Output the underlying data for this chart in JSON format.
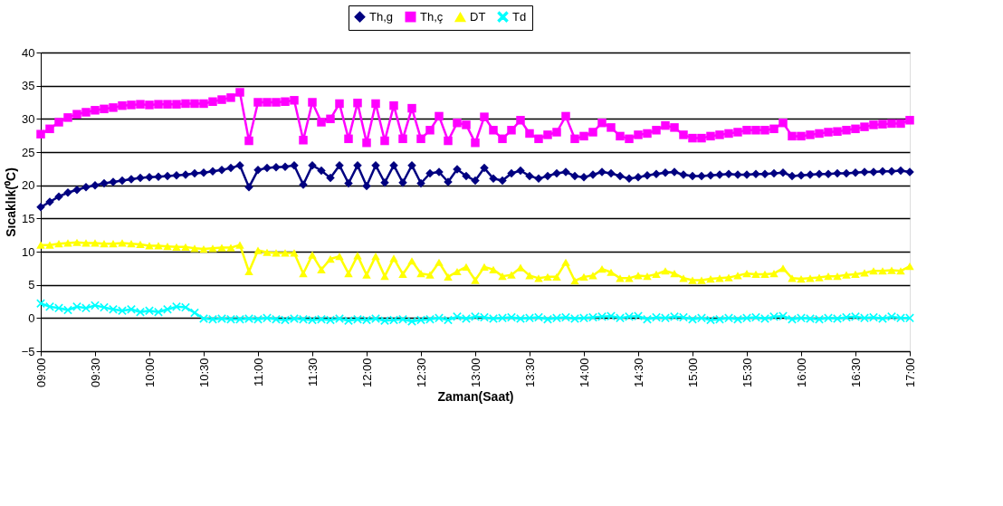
{
  "chart_data": {
    "type": "line",
    "xlabel": "Zaman(Saat)",
    "ylabel": "Sıcaklık(⁰C)",
    "ylim": [
      -5,
      40
    ],
    "yticks": [
      -5,
      0,
      5,
      10,
      15,
      20,
      25,
      30,
      35,
      40
    ],
    "grid": "y",
    "legend": "top",
    "categories": [
      "09:00",
      null,
      null,
      null,
      null,
      null,
      "09:30",
      null,
      null,
      null,
      null,
      null,
      "10:00",
      null,
      null,
      null,
      null,
      null,
      "10:30",
      null,
      null,
      null,
      null,
      null,
      "11:00",
      null,
      null,
      null,
      null,
      null,
      "11:30",
      null,
      null,
      null,
      null,
      null,
      "12:00",
      null,
      null,
      null,
      null,
      null,
      "12:30",
      null,
      null,
      null,
      null,
      null,
      "13:00",
      null,
      null,
      null,
      null,
      null,
      "13:30",
      null,
      null,
      null,
      null,
      null,
      "14:00",
      null,
      null,
      null,
      null,
      null,
      "14:30",
      null,
      null,
      null,
      null,
      null,
      "15:00",
      null,
      null,
      null,
      null,
      null,
      "15:30",
      null,
      null,
      null,
      null,
      null,
      "16:00",
      null,
      null,
      null,
      null,
      null,
      "16:30",
      null,
      null,
      null,
      null,
      null,
      "17:00"
    ],
    "series": [
      {
        "name": "Th,g",
        "color": "#000080",
        "marker": "diamond",
        "line_style": "solid",
        "values": [
          16.7,
          17.5,
          18.3,
          18.9,
          19.3,
          19.7,
          20.0,
          20.3,
          20.5,
          20.7,
          20.9,
          21.1,
          21.2,
          21.3,
          21.4,
          21.5,
          21.6,
          21.8,
          21.9,
          22.1,
          22.3,
          22.6,
          23.0,
          19.7,
          22.3,
          22.6,
          22.7,
          22.8,
          23.0,
          20.1,
          23.0,
          22.2,
          21.1,
          23.0,
          20.3,
          23.0,
          19.9,
          23.0,
          20.4,
          23.0,
          20.4,
          23.0,
          20.3,
          21.8,
          22.0,
          20.5,
          22.4,
          21.4,
          20.7,
          22.6,
          21.0,
          20.7,
          21.8,
          22.2,
          21.4,
          21.0,
          21.4,
          21.8,
          22.0,
          21.4,
          21.2,
          21.6,
          22.0,
          21.8,
          21.4,
          21.0,
          21.2,
          21.5,
          21.7,
          21.9,
          22.0,
          21.6,
          21.4,
          21.4,
          21.5,
          21.6,
          21.7,
          21.6,
          21.6,
          21.7,
          21.7,
          21.8,
          21.9,
          21.4,
          21.5,
          21.6,
          21.7,
          21.7,
          21.8,
          21.8,
          21.9,
          22.0,
          22.0,
          22.1,
          22.1,
          22.2,
          22.0
        ]
      },
      {
        "name": "Th,ç",
        "color": "#ff00ff",
        "marker": "square",
        "line_style": "solid",
        "values": [
          27.7,
          28.5,
          29.5,
          30.2,
          30.7,
          31.0,
          31.3,
          31.5,
          31.7,
          32.0,
          32.1,
          32.2,
          32.1,
          32.2,
          32.2,
          32.2,
          32.3,
          32.3,
          32.3,
          32.6,
          32.9,
          33.2,
          34.0,
          26.7,
          32.5,
          32.5,
          32.5,
          32.6,
          32.8,
          26.8,
          32.5,
          29.5,
          30.0,
          32.3,
          27.0,
          32.4,
          26.4,
          32.3,
          26.7,
          32.0,
          27.0,
          31.6,
          27.0,
          28.3,
          30.4,
          26.7,
          29.4,
          29.1,
          26.4,
          30.3,
          28.3,
          27.0,
          28.3,
          29.8,
          27.8,
          27.0,
          27.6,
          28.0,
          30.4,
          27.0,
          27.4,
          28.0,
          29.4,
          28.7,
          27.4,
          27.0,
          27.6,
          27.8,
          28.3,
          29.0,
          28.7,
          27.6,
          27.1,
          27.1,
          27.4,
          27.6,
          27.8,
          28.0,
          28.3,
          28.3,
          28.3,
          28.5,
          29.4,
          27.4,
          27.4,
          27.6,
          27.8,
          28.0,
          28.1,
          28.3,
          28.5,
          28.8,
          29.1,
          29.2,
          29.3,
          29.3,
          29.8
        ]
      },
      {
        "name": "DT",
        "color": "#ffff00",
        "marker": "triangle",
        "line_style": "solid",
        "values": [
          11.0,
          11.0,
          11.2,
          11.3,
          11.4,
          11.3,
          11.3,
          11.2,
          11.2,
          11.3,
          11.2,
          11.1,
          10.9,
          10.9,
          10.8,
          10.7,
          10.7,
          10.5,
          10.4,
          10.5,
          10.6,
          10.6,
          11.0,
          7.0,
          10.2,
          9.9,
          9.8,
          9.8,
          9.8,
          6.7,
          9.5,
          7.3,
          8.9,
          9.3,
          6.7,
          9.4,
          6.5,
          9.3,
          6.3,
          9.0,
          6.6,
          8.6,
          6.7,
          6.5,
          8.4,
          6.2,
          7.0,
          7.7,
          5.7,
          7.7,
          7.3,
          6.3,
          6.5,
          7.6,
          6.4,
          6.0,
          6.2,
          6.2,
          8.4,
          5.6,
          6.2,
          6.4,
          7.4,
          6.9,
          6.0,
          6.0,
          6.4,
          6.3,
          6.6,
          7.1,
          6.7,
          6.0,
          5.7,
          5.7,
          5.9,
          6.0,
          6.1,
          6.4,
          6.7,
          6.6,
          6.6,
          6.7,
          7.5,
          6.0,
          5.9,
          6.0,
          6.1,
          6.3,
          6.3,
          6.5,
          6.6,
          6.8,
          7.1,
          7.1,
          7.2,
          7.1,
          7.8
        ]
      },
      {
        "name": "Td",
        "color": "#00ffff",
        "marker": "cross",
        "line_style": "solid",
        "values": [
          2.2,
          1.7,
          1.5,
          1.2,
          1.7,
          1.5,
          1.9,
          1.6,
          1.3,
          1.1,
          1.3,
          0.9,
          1.1,
          0.9,
          1.3,
          1.7,
          1.6,
          0.8,
          -0.1,
          -0.2,
          -0.1,
          -0.2,
          -0.2,
          -0.1,
          -0.2,
          0.0,
          -0.2,
          -0.3,
          -0.1,
          -0.2,
          -0.3,
          -0.2,
          -0.3,
          -0.1,
          -0.4,
          -0.2,
          -0.3,
          -0.1,
          -0.4,
          -0.3,
          -0.2,
          -0.5,
          -0.3,
          -0.2,
          0.0,
          -0.3,
          0.2,
          -0.1,
          0.2,
          0.1,
          -0.1,
          0.0,
          0.1,
          -0.1,
          0.0,
          0.1,
          -0.2,
          0.0,
          0.1,
          -0.1,
          0.0,
          0.1,
          0.2,
          0.3,
          0.0,
          0.2,
          0.3,
          -0.2,
          0.1,
          0.0,
          0.2,
          0.1,
          -0.2,
          0.0,
          -0.3,
          -0.2,
          0.0,
          -0.2,
          0.0,
          0.1,
          -0.1,
          0.2,
          0.3,
          -0.2,
          0.0,
          -0.1,
          -0.2,
          0.0,
          -0.1,
          0.1,
          0.2,
          0.0,
          0.1,
          -0.1,
          0.2,
          0.0,
          0.0
        ]
      }
    ]
  }
}
